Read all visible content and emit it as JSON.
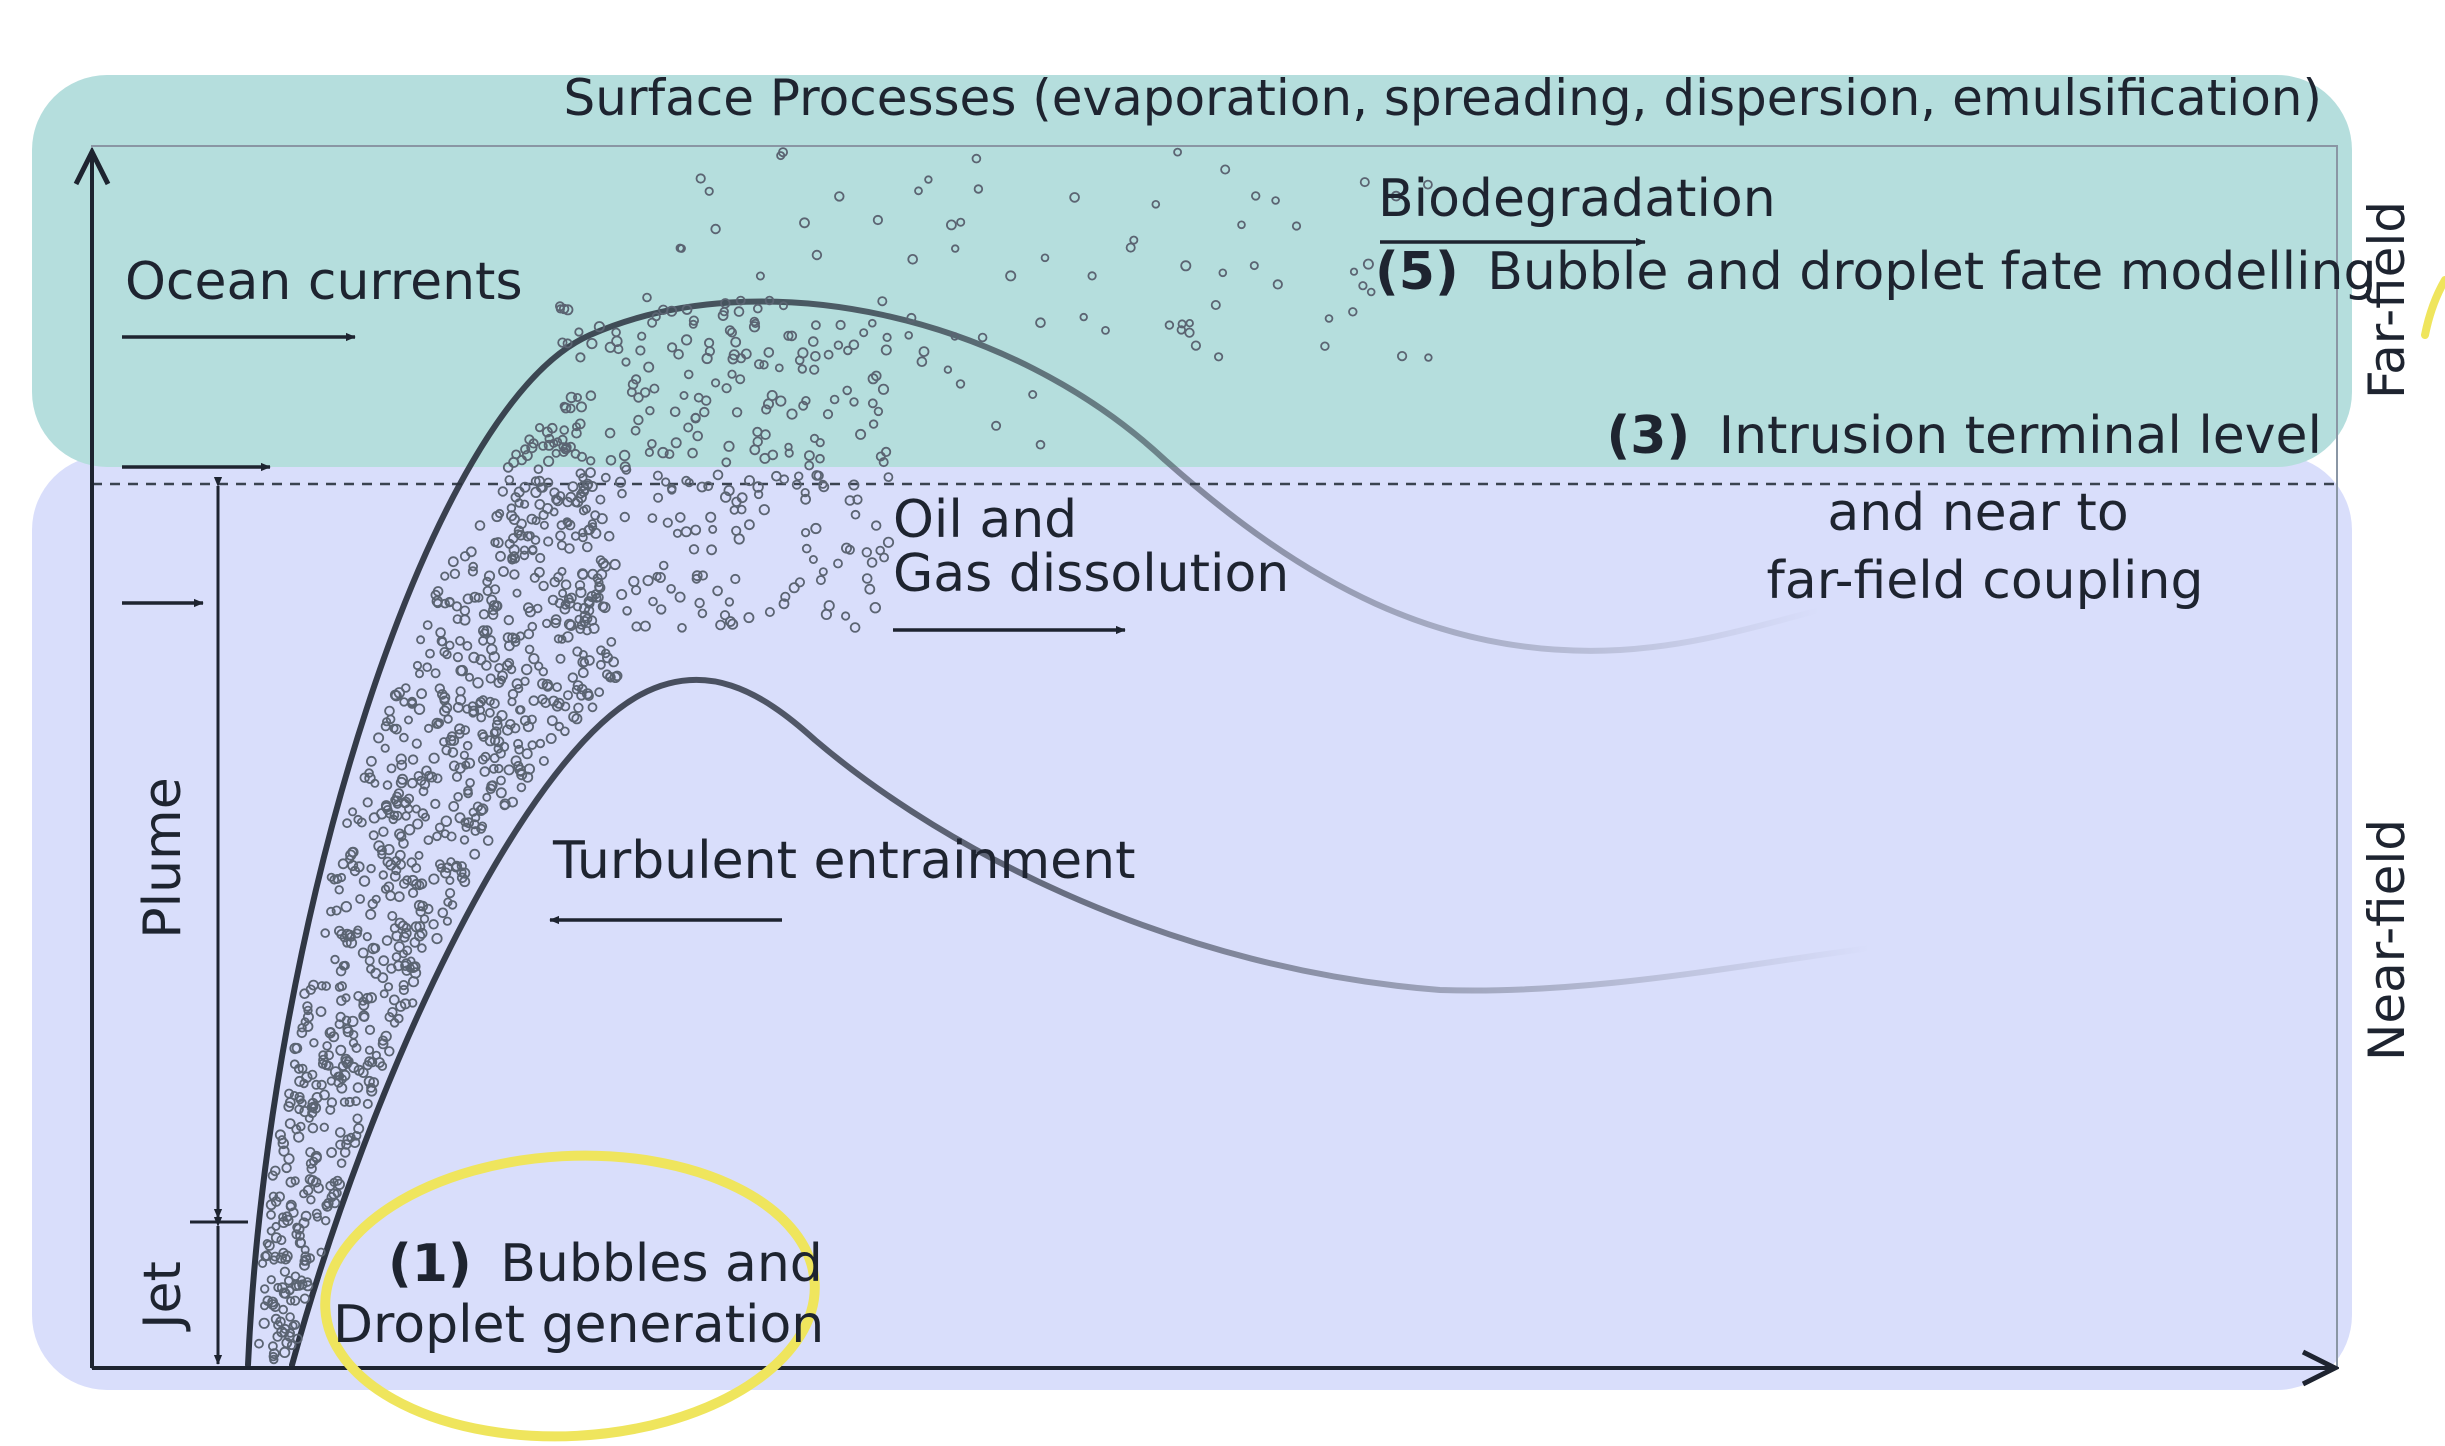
{
  "diagram": {
    "surface_title": "Surface Processes (evaporation, spreading, dispersion, emulsification)",
    "ocean_currents": "Ocean currents",
    "biodegradation": "Biodegradation",
    "fate_number": "(5)",
    "fate_label": "Bubble and droplet fate modelling",
    "intrusion_number": "(3)",
    "intrusion_line1": "Intrusion terminal level",
    "intrusion_line2": "and near to",
    "intrusion_line3": "far-field coupling",
    "dissolution_line1": "Oil and",
    "dissolution_line2": "Gas dissolution",
    "turbulent": "Turbulent entrainment",
    "plume": "Plume",
    "jet": "Jet",
    "generation_number": "(1)",
    "generation_line1": "Bubbles and",
    "generation_line2": "Droplet generation",
    "far_field": "Far-field",
    "near_field": "Near-field"
  },
  "colors": {
    "far_field_fill": "#b5dedd",
    "near_field_fill": "#d9defb",
    "line": "#1e2430",
    "highlight": "#efe55d"
  }
}
